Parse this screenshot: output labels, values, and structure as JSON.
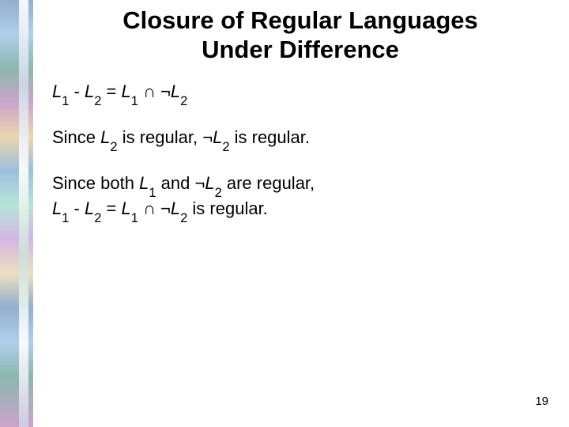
{
  "colors": {
    "background": "#ffffff",
    "text": "#000000"
  },
  "typography": {
    "title_fontsize": 31,
    "title_weight": "bold",
    "body_fontsize": 22,
    "pagenumber_fontsize": 15,
    "font_family": "Arial"
  },
  "layout": {
    "slide_width": 720,
    "slide_height": 540,
    "decor_strip_width": 42
  },
  "title": {
    "line1": "Closure of Regular Languages",
    "line2": "Under Difference"
  },
  "symbols": {
    "L": "L",
    "sub1": "1",
    "sub2": "2",
    "minus": " - ",
    "equals": " = ",
    "intersect": " ∩ ",
    "not": "¬"
  },
  "text": {
    "since_prefix": "Since ",
    "is_regular_comma": " is regular, ",
    "is_regular_period": " is regular.",
    "since_both": "Since both ",
    "and_sp": " and ",
    "are_regular_comma": " are regular,"
  },
  "page_number": "19"
}
